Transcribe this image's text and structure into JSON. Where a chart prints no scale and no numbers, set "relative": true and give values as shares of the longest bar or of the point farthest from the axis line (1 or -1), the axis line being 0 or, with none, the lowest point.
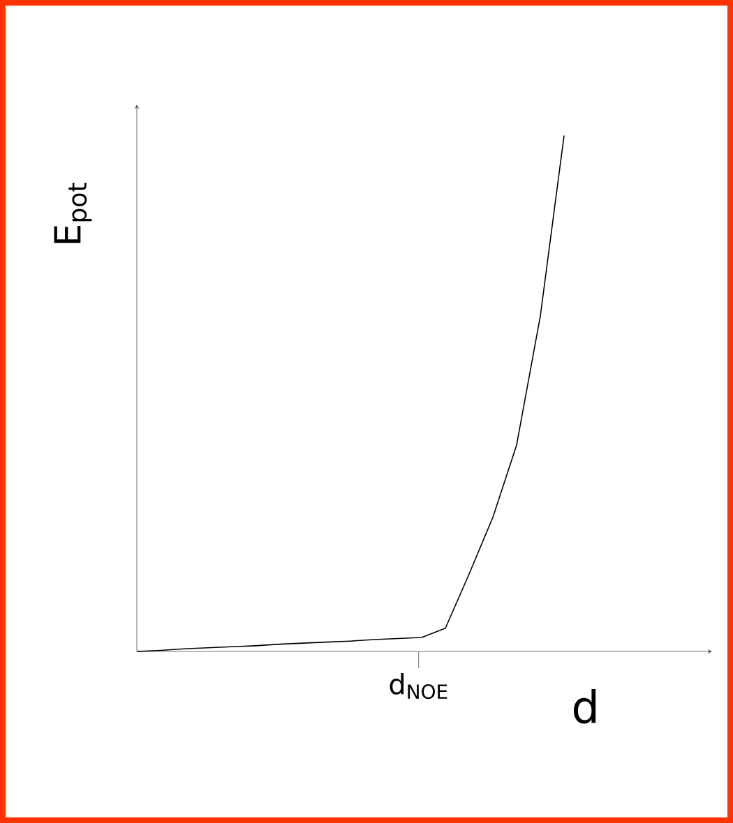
{
  "chart_data": {
    "type": "line",
    "relative": true,
    "xlabel": "d",
    "ylabel": "E$_{pot}$",
    "categories": [
      null,
      null,
      null,
      null,
      null,
      null,
      null,
      null,
      null,
      null,
      null,
      null,
      null,
      null,
      null,
      null,
      null,
      null,
      null
    ],
    "annotations": [
      "d$_{NOE}$"
    ],
    "series": [
      {
        "color": "#000000",
        "values": [
          0,
          0.002,
          0.005,
          0.007,
          0.009,
          0.011,
          0.014,
          0.016,
          0.018,
          0.02,
          0.023,
          0.025,
          0.027,
          0.045,
          0.15,
          0.26,
          0.4,
          0.65,
          1.0
        ]
      }
    ],
    "marker": "none",
    "line_style": "solid"
  }
}
